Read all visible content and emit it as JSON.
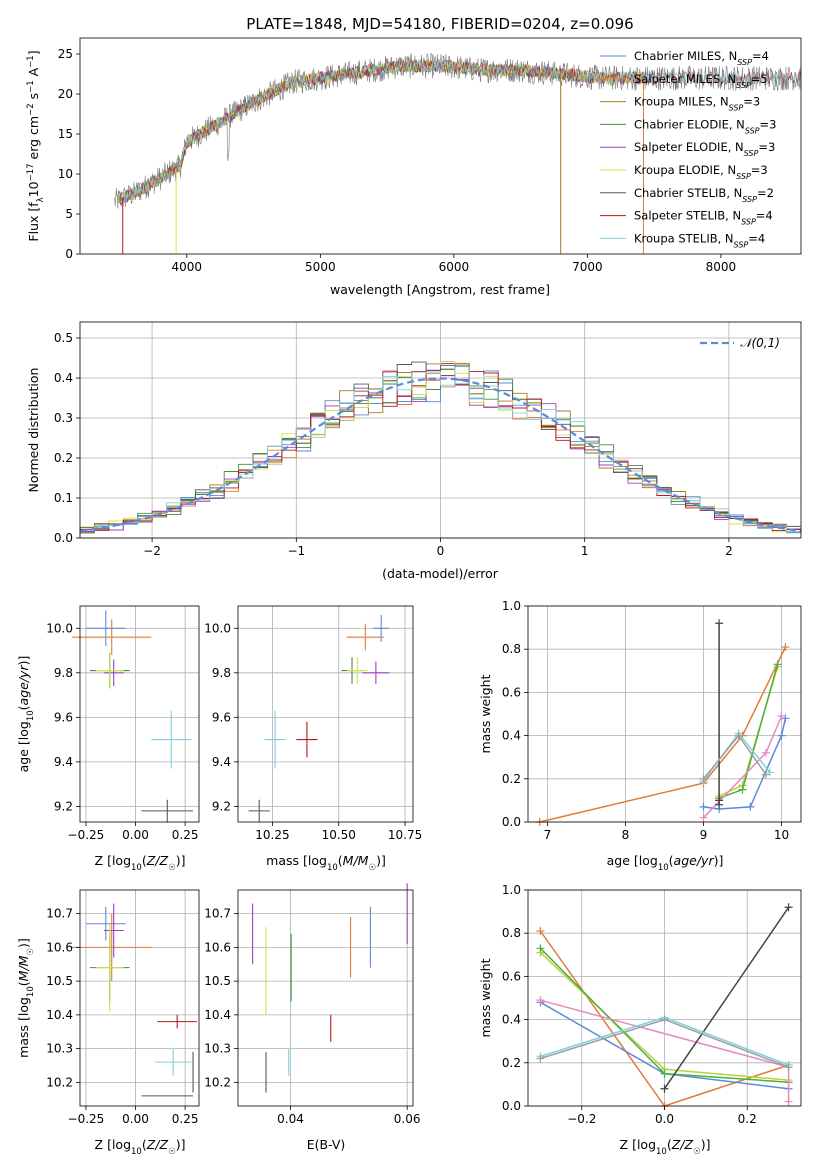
{
  "figure_title": "PLATE=1848, MJD=54180, FIBERID=0204, z=0.096",
  "colors": {
    "Chabrier MILES": "#5b8bd8",
    "Salpeter MILES": "#e07b39",
    "Kroupa MILES": "#a07d2a",
    "Chabrier ELODIE": "#3f8f3f",
    "Salpeter ELODIE": "#9a3fc2",
    "Kroupa ELODIE": "#d4e04a",
    "Chabrier STELIB": "#555555",
    "Salpeter STELIB": "#b01c1c",
    "Kroupa STELIB": "#7fd0d8",
    "gaussian": "#5b8bd8",
    "data": "#777777"
  },
  "legend1": [
    {
      "name": "Chabrier MILES",
      "nssp": "4"
    },
    {
      "name": "Salpeter MILES",
      "nssp": "5"
    },
    {
      "name": "Kroupa MILES",
      "nssp": "3"
    },
    {
      "name": "Chabrier ELODIE",
      "nssp": "3"
    },
    {
      "name": "Salpeter ELODIE",
      "nssp": "3"
    },
    {
      "name": "Kroupa ELODIE",
      "nssp": "3"
    },
    {
      "name": "Chabrier STELIB",
      "nssp": "2"
    },
    {
      "name": "Salpeter STELIB",
      "nssp": "4"
    },
    {
      "name": "Kroupa STELIB",
      "nssp": "4"
    }
  ],
  "chart_data": [
    {
      "id": "spectrum",
      "type": "line",
      "xlabel": "wavelength [Angstrom, rest frame]",
      "ylabel": "Flux [f_λ 10^-17 erg cm^-2 s^-1 A^-1]",
      "xlim": [
        3200,
        8600
      ],
      "ylim": [
        0,
        27
      ],
      "xticks": [
        4000,
        5000,
        6000,
        7000,
        8000
      ],
      "yticks": [
        0,
        5,
        10,
        15,
        20,
        25
      ],
      "continuum": {
        "x": [
          3450,
          3600,
          3800,
          3950,
          4000,
          4100,
          4300,
          4500,
          4800,
          5000,
          5200,
          5400,
          5600,
          5900,
          6200,
          6500,
          6800,
          7100,
          7400,
          7800,
          8200,
          8600
        ],
        "y": [
          6.5,
          7.5,
          9.5,
          11,
          14,
          15,
          17,
          19,
          21.5,
          22,
          22.5,
          23,
          23.5,
          23.5,
          23,
          23,
          22.5,
          22,
          22,
          22,
          22,
          22
        ]
      },
      "legend_position": "right"
    },
    {
      "id": "residuals",
      "type": "step",
      "xlabel": "(data-model)/error",
      "ylabel": "Normed distribution",
      "xlim": [
        -2.5,
        2.5
      ],
      "ylim": [
        0,
        0.54
      ],
      "xticks": [
        -2,
        -1,
        0,
        1,
        2
      ],
      "yticks": [
        0.0,
        0.1,
        0.2,
        0.3,
        0.4,
        0.5
      ],
      "gaussian_label": "𝒩(0,1)",
      "bin_width": 0.1,
      "legend_position": "top-right"
    },
    {
      "id": "age-vs-Z",
      "type": "errorbar",
      "xlabel": "Z [log10(Z/Z☉)]",
      "ylabel": "age [log10(age/yr)]",
      "xlim": [
        -0.28,
        0.32
      ],
      "ylim": [
        9.13,
        10.1
      ],
      "xticks": [
        -0.25,
        0.0,
        0.25
      ],
      "yticks": [
        9.2,
        9.4,
        9.6,
        9.8,
        10.0
      ],
      "points": [
        {
          "s": "Chabrier MILES",
          "x": -0.15,
          "xerr": 0.1,
          "y": 10.0,
          "yerr": 0.08
        },
        {
          "s": "Salpeter MILES",
          "x": -0.12,
          "xerr": 0.2,
          "y": 9.96,
          "yerr": 0.08
        },
        {
          "s": "Chabrier ELODIE",
          "x": -0.13,
          "xerr": 0.1,
          "y": 9.81,
          "yerr": 0.08
        },
        {
          "s": "Salpeter ELODIE",
          "x": -0.11,
          "xerr": 0.05,
          "y": 9.8,
          "yerr": 0.06
        },
        {
          "s": "Kroupa ELODIE",
          "x": -0.13,
          "xerr": 0.07,
          "y": 9.81,
          "yerr": 0.08
        },
        {
          "s": "Chabrier STELIB",
          "x": 0.16,
          "xerr": 0.13,
          "y": 9.18,
          "yerr": 0.05
        },
        {
          "s": "Kroupa STELIB",
          "x": 0.18,
          "xerr": 0.1,
          "y": 9.5,
          "yerr": 0.13
        }
      ]
    },
    {
      "id": "age-vs-mass",
      "type": "errorbar",
      "xlabel": "mass [log10(M/M☉)]",
      "ylabel": "",
      "xlim": [
        10.12,
        10.78
      ],
      "ylim": [
        9.13,
        10.1
      ],
      "xticks": [
        10.25,
        10.5,
        10.75
      ],
      "yticks": [
        9.2,
        9.4,
        9.6,
        9.8,
        10.0
      ],
      "points": [
        {
          "s": "Chabrier MILES",
          "x": 10.66,
          "xerr": 0.03,
          "y": 10.0,
          "yerr": 0.06
        },
        {
          "s": "Salpeter MILES",
          "x": 10.6,
          "xerr": 0.07,
          "y": 9.96,
          "yerr": 0.06
        },
        {
          "s": "Chabrier ELODIE",
          "x": 10.55,
          "xerr": 0.04,
          "y": 9.81,
          "yerr": 0.06
        },
        {
          "s": "Salpeter ELODIE",
          "x": 10.64,
          "xerr": 0.05,
          "y": 9.8,
          "yerr": 0.05
        },
        {
          "s": "Kroupa ELODIE",
          "x": 10.57,
          "xerr": 0.04,
          "y": 9.81,
          "yerr": 0.06
        },
        {
          "s": "Salpeter STELIB",
          "x": 10.38,
          "xerr": 0.04,
          "y": 9.5,
          "yerr": 0.08
        },
        {
          "s": "Kroupa STELIB",
          "x": 10.26,
          "xerr": 0.04,
          "y": 9.5,
          "yerr": 0.13
        },
        {
          "s": "Chabrier STELIB",
          "x": 10.2,
          "xerr": 0.04,
          "y": 9.18,
          "yerr": 0.05
        }
      ]
    },
    {
      "id": "mass-weight-vs-age",
      "type": "line",
      "xlabel": "age [log10(age/yr)]",
      "ylabel": "mass weight",
      "xlim": [
        6.75,
        10.25
      ],
      "ylim": [
        0,
        1
      ],
      "xticks": [
        7,
        8,
        9,
        10
      ],
      "yticks": [
        0.0,
        0.2,
        0.4,
        0.6,
        0.8,
        1.0
      ],
      "series": [
        {
          "s": "Salpeter MILES",
          "x": [
            6.9,
            9.0,
            9.5,
            10.05
          ],
          "y": [
            0.0,
            0.18,
            0.4,
            0.81
          ]
        },
        {
          "s": "Chabrier MILES",
          "x": [
            9.0,
            9.2,
            9.6,
            10.0,
            10.05
          ],
          "y": [
            0.07,
            0.06,
            0.07,
            0.4,
            0.48
          ]
        },
        {
          "s": "Kroupa ELODIE",
          "x": [
            9.2,
            9.5,
            9.95
          ],
          "y": [
            0.12,
            0.17,
            0.72
          ]
        },
        {
          "s": "Chabrier ELODIE",
          "x": [
            9.2,
            9.5,
            9.95
          ],
          "y": [
            0.11,
            0.15,
            0.73
          ]
        },
        {
          "s": "Salpeter ELODIE",
          "x": [
            9.0,
            9.8,
            10.0
          ],
          "y": [
            0.02,
            0.32,
            0.49
          ]
        },
        {
          "s": "Chabrier STELIB",
          "x": [
            9.2,
            9.2,
            9.2
          ],
          "y": [
            0.08,
            0.1,
            0.92
          ]
        },
        {
          "s": "Kroupa STELIB",
          "x": [
            9.0,
            9.45,
            9.85
          ],
          "y": [
            0.19,
            0.41,
            0.23
          ]
        },
        {
          "s": "Chabrier STELIB",
          "x": [
            9.0,
            9.45,
            9.8
          ],
          "y": [
            0.2,
            0.4,
            0.22
          ]
        }
      ]
    },
    {
      "id": "mass-vs-Z",
      "type": "errorbar",
      "xlabel": "Z [log10(Z/Z☉)]",
      "ylabel": "mass [log10(M/M☉)]",
      "xlim": [
        -0.28,
        0.32
      ],
      "ylim": [
        10.13,
        10.77
      ],
      "xticks": [
        -0.25,
        0.0,
        0.25
      ],
      "yticks": [
        10.2,
        10.3,
        10.4,
        10.5,
        10.6,
        10.7
      ],
      "points": [
        {
          "s": "Chabrier MILES",
          "x": -0.15,
          "xerr": 0.1,
          "y": 10.67,
          "yerr": 0.05
        },
        {
          "s": "Salpeter MILES",
          "x": -0.12,
          "xerr": 0.2,
          "y": 10.6,
          "yerr": 0.1
        },
        {
          "s": "Chabrier ELODIE",
          "x": -0.13,
          "xerr": 0.1,
          "y": 10.54,
          "yerr": 0.1
        },
        {
          "s": "Salpeter ELODIE",
          "x": -0.11,
          "xerr": 0.05,
          "y": 10.65,
          "yerr": 0.08
        },
        {
          "s": "Kroupa ELODIE",
          "x": -0.13,
          "xerr": 0.07,
          "y": 10.54,
          "yerr": 0.13
        },
        {
          "s": "Salpeter STELIB",
          "x": 0.1,
          "xerr": 0.0,
          "y": 10.38,
          "yerr": 0.0
        },
        {
          "s": "Salpeter STELIB",
          "x": 0.21,
          "xerr": 0.1,
          "y": 10.38,
          "yerr": 0.02
        },
        {
          "s": "Kroupa STELIB",
          "x": 0.19,
          "xerr": 0.09,
          "y": 10.26,
          "yerr": 0.04
        },
        {
          "s": "Chabrier STELIB",
          "x": 0.16,
          "xerr": 0.13,
          "y": 10.16,
          "yerr": 0.0
        },
        {
          "s": "Chabrier STELIB",
          "x": 0.29,
          "xerr": 0.0,
          "y": 10.23,
          "yerr": 0.06
        }
      ]
    },
    {
      "id": "mass-vs-ebv",
      "type": "errorbar",
      "xlabel": "E(B-V)",
      "ylabel": "",
      "xlim": [
        0.031,
        0.061
      ],
      "ylim": [
        10.13,
        10.77
      ],
      "xticks": [
        0.04,
        0.06
      ],
      "yticks": [
        10.2,
        10.3,
        10.4,
        10.5,
        10.6,
        10.7
      ],
      "points": [
        {
          "s": "Salpeter ELODIE",
          "x": 0.0335,
          "xerr": 0.0,
          "y": 10.64,
          "yerr": 0.09
        },
        {
          "s": "Chabrier STELIB",
          "x": 0.0358,
          "xerr": 0.0,
          "y": 10.23,
          "yerr": 0.06
        },
        {
          "s": "Kroupa ELODIE",
          "x": 0.0358,
          "xerr": 0.0,
          "y": 10.53,
          "yerr": 0.13
        },
        {
          "s": "Kroupa STELIB",
          "x": 0.0397,
          "xerr": 0.0,
          "y": 10.26,
          "yerr": 0.04
        },
        {
          "s": "Chabrier ELODIE",
          "x": 0.0401,
          "xerr": 0.0,
          "y": 10.54,
          "yerr": 0.1
        },
        {
          "s": "Salpeter STELIB",
          "x": 0.0469,
          "xerr": 0.0,
          "y": 10.36,
          "yerr": 0.04
        },
        {
          "s": "Salpeter MILES",
          "x": 0.0503,
          "xerr": 0.0,
          "y": 10.6,
          "yerr": 0.09
        },
        {
          "s": "Chabrier MILES",
          "x": 0.0537,
          "xerr": 0.0,
          "y": 10.63,
          "yerr": 0.09
        },
        {
          "s": "Salpeter ELODIE",
          "x": 0.06,
          "xerr": 0.0,
          "y": 10.7,
          "yerr": 0.09
        }
      ]
    },
    {
      "id": "mass-weight-vs-Z",
      "type": "line",
      "xlabel": "Z [log10(Z/Z☉)]",
      "ylabel": "mass weight",
      "xlim": [
        -0.33,
        0.33
      ],
      "ylim": [
        0,
        1
      ],
      "xticks": [
        -0.2,
        0.0,
        0.2
      ],
      "yticks": [
        0.0,
        0.2,
        0.4,
        0.6,
        0.8,
        1.0
      ],
      "series": [
        {
          "s": "Salpeter MILES",
          "x": [
            -0.3,
            0.0,
            0.3
          ],
          "y": [
            0.81,
            0.0,
            0.19
          ]
        },
        {
          "s": "Chabrier MILES",
          "x": [
            -0.3,
            0.0,
            0.3
          ],
          "y": [
            0.48,
            0.15,
            0.08
          ]
        },
        {
          "s": "Kroupa ELODIE",
          "x": [
            -0.3,
            0.0,
            0.3
          ],
          "y": [
            0.71,
            0.17,
            0.12
          ]
        },
        {
          "s": "Chabrier ELODIE",
          "x": [
            -0.3,
            0.0,
            0.3
          ],
          "y": [
            0.73,
            0.15,
            0.11
          ]
        },
        {
          "s": "Salpeter ELODIE",
          "x": [
            -0.3,
            0.3,
            0.3
          ],
          "y": [
            0.49,
            0.18,
            0.02
          ]
        },
        {
          "s": "Chabrier STELIB",
          "x": [
            0.0,
            0.3
          ],
          "y": [
            0.08,
            0.92
          ]
        },
        {
          "s": "Kroupa STELIB",
          "x": [
            -0.3,
            0.0,
            0.3
          ],
          "y": [
            0.23,
            0.41,
            0.19
          ]
        },
        {
          "s": "Chabrier STELIB",
          "x": [
            -0.3,
            0.0,
            0.3
          ],
          "y": [
            0.22,
            0.4,
            0.18
          ]
        }
      ]
    }
  ]
}
